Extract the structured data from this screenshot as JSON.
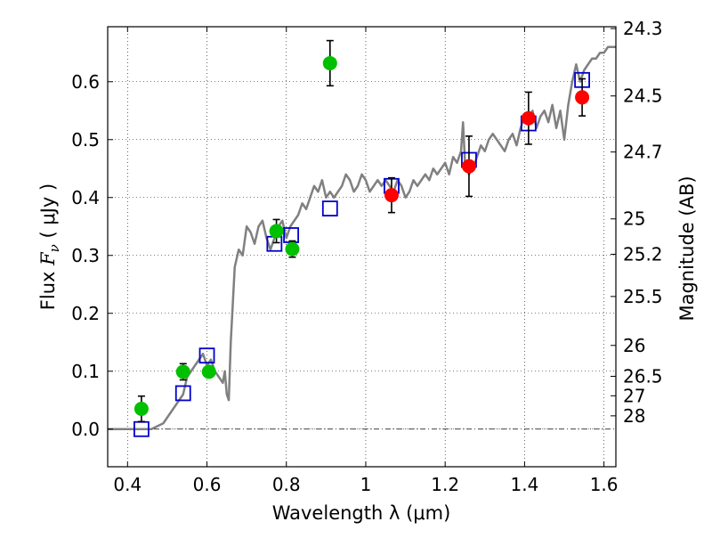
{
  "chart_data": {
    "type": "scatter",
    "xlabel": "Wavelength  λ (μm)",
    "ylabel": {
      "prefix": "Flux  ",
      "symbol": "F",
      "subscript": "ν",
      "units": "  ( μJy )"
    },
    "ylabel_right": "Magnitude (AB)",
    "xlim": [
      0.35,
      1.63
    ],
    "ylim": [
      -0.065,
      0.695
    ],
    "grid": true,
    "x_ticks": [
      {
        "v": 0.4,
        "label": "0.4"
      },
      {
        "v": 0.6,
        "label": "0.6"
      },
      {
        "v": 0.8,
        "label": "0.8"
      },
      {
        "v": 1.0,
        "label": "1"
      },
      {
        "v": 1.2,
        "label": "1.2"
      },
      {
        "v": 1.4,
        "label": "1.4"
      },
      {
        "v": 1.6,
        "label": "1.6"
      }
    ],
    "y_ticks": [
      {
        "v": 0.0,
        "label": "0.0"
      },
      {
        "v": 0.1,
        "label": "0.1"
      },
      {
        "v": 0.2,
        "label": "0.2"
      },
      {
        "v": 0.3,
        "label": "0.3"
      },
      {
        "v": 0.4,
        "label": "0.4"
      },
      {
        "v": 0.5,
        "label": "0.5"
      },
      {
        "v": 0.6,
        "label": "0.6"
      }
    ],
    "mag_ticks": [
      {
        "mag": 24.3,
        "label": "24.3"
      },
      {
        "mag": 24.5,
        "label": "24.5"
      },
      {
        "mag": 24.7,
        "label": "24.7"
      },
      {
        "mag": 25.0,
        "label": "25"
      },
      {
        "mag": 25.2,
        "label": "25.2"
      },
      {
        "mag": 25.5,
        "label": "25.5"
      },
      {
        "mag": 26.0,
        "label": "26"
      },
      {
        "mag": 26.5,
        "label": "26.5"
      },
      {
        "mag": 27.0,
        "label": "27"
      },
      {
        "mag": 28.0,
        "label": "28"
      }
    ],
    "series": [
      {
        "name": "model_spectrum",
        "kind": "line",
        "color": "#808080",
        "x": [
          0.35,
          0.46,
          0.49,
          0.52,
          0.54,
          0.55,
          0.56,
          0.57,
          0.58,
          0.59,
          0.6,
          0.61,
          0.62,
          0.63,
          0.64,
          0.645,
          0.65,
          0.655,
          0.66,
          0.67,
          0.68,
          0.69,
          0.7,
          0.71,
          0.72,
          0.73,
          0.74,
          0.75,
          0.76,
          0.77,
          0.78,
          0.79,
          0.8,
          0.81,
          0.82,
          0.83,
          0.84,
          0.85,
          0.86,
          0.87,
          0.88,
          0.89,
          0.9,
          0.91,
          0.92,
          0.93,
          0.94,
          0.95,
          0.96,
          0.97,
          0.98,
          0.99,
          1.0,
          1.01,
          1.02,
          1.03,
          1.04,
          1.05,
          1.06,
          1.07,
          1.08,
          1.09,
          1.1,
          1.11,
          1.12,
          1.13,
          1.14,
          1.15,
          1.16,
          1.17,
          1.18,
          1.19,
          1.2,
          1.21,
          1.22,
          1.23,
          1.24,
          1.245,
          1.25,
          1.26,
          1.27,
          1.28,
          1.29,
          1.3,
          1.31,
          1.32,
          1.33,
          1.34,
          1.35,
          1.36,
          1.37,
          1.38,
          1.39,
          1.4,
          1.41,
          1.42,
          1.43,
          1.44,
          1.45,
          1.46,
          1.47,
          1.48,
          1.49,
          1.5,
          1.51,
          1.52,
          1.53,
          1.54,
          1.55,
          1.56,
          1.57,
          1.58,
          1.59,
          1.6,
          1.61,
          1.62,
          1.63
        ],
        "y": [
          0.0,
          0.0,
          0.01,
          0.04,
          0.06,
          0.09,
          0.1,
          0.11,
          0.12,
          0.13,
          0.11,
          0.12,
          0.1,
          0.09,
          0.08,
          0.1,
          0.06,
          0.05,
          0.15,
          0.28,
          0.31,
          0.3,
          0.35,
          0.34,
          0.32,
          0.35,
          0.36,
          0.33,
          0.31,
          0.33,
          0.35,
          0.36,
          0.33,
          0.35,
          0.36,
          0.37,
          0.39,
          0.38,
          0.4,
          0.42,
          0.41,
          0.43,
          0.4,
          0.41,
          0.4,
          0.41,
          0.42,
          0.44,
          0.43,
          0.41,
          0.42,
          0.44,
          0.43,
          0.41,
          0.42,
          0.43,
          0.42,
          0.43,
          0.42,
          0.41,
          0.43,
          0.42,
          0.4,
          0.41,
          0.43,
          0.42,
          0.43,
          0.44,
          0.43,
          0.45,
          0.44,
          0.45,
          0.46,
          0.44,
          0.47,
          0.46,
          0.48,
          0.53,
          0.46,
          0.44,
          0.45,
          0.47,
          0.49,
          0.48,
          0.5,
          0.51,
          0.5,
          0.49,
          0.48,
          0.5,
          0.51,
          0.49,
          0.52,
          0.54,
          0.53,
          0.55,
          0.52,
          0.54,
          0.55,
          0.53,
          0.56,
          0.52,
          0.55,
          0.5,
          0.56,
          0.6,
          0.63,
          0.6,
          0.62,
          0.63,
          0.64,
          0.64,
          0.65,
          0.65,
          0.66,
          0.66,
          0.66
        ]
      },
      {
        "name": "model_photometry",
        "kind": "open-square",
        "color": "#0000cc",
        "x": [
          0.435,
          0.54,
          0.6,
          0.77,
          0.812,
          0.91,
          1.065,
          1.26,
          1.41,
          1.545
        ],
        "y": [
          0.0,
          0.062,
          0.127,
          0.32,
          0.335,
          0.381,
          0.42,
          0.465,
          0.528,
          0.603
        ]
      },
      {
        "name": "optical_detections",
        "kind": "filled-circle",
        "color": "#00c000",
        "x": [
          0.435,
          0.54,
          0.605,
          0.775,
          0.815,
          0.91
        ],
        "y": [
          0.035,
          0.099,
          0.099,
          0.342,
          0.311,
          0.632
        ],
        "err": [
          0.022,
          0.014,
          0.0,
          0.02,
          0.014,
          0.039
        ]
      },
      {
        "name": "nir_detections",
        "kind": "filled-circle",
        "color": "#ff0000",
        "x": [
          1.065,
          1.26,
          1.41,
          1.545
        ],
        "y": [
          0.404,
          0.454,
          0.537,
          0.573
        ],
        "err": [
          0.03,
          0.052,
          0.045,
          0.032
        ]
      }
    ]
  }
}
